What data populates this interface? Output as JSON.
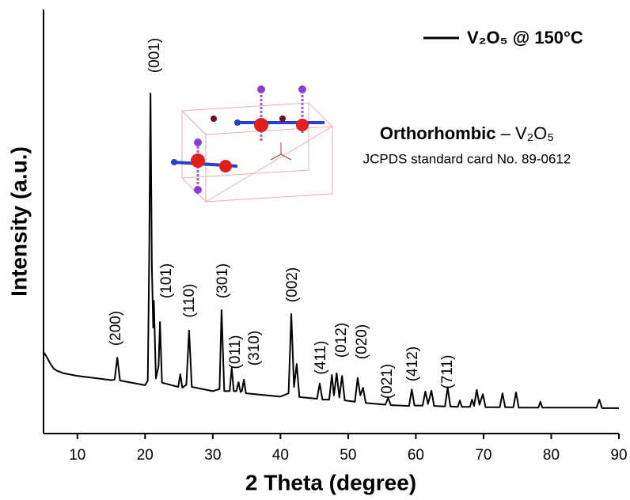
{
  "chart_data": {
    "type": "line",
    "xlabel": "2 Theta (degree)",
    "ylabel": "Intensity (a.u.)",
    "xlim": [
      5,
      90
    ],
    "xticks": [
      10,
      20,
      30,
      40,
      50,
      60,
      70,
      80,
      90
    ],
    "ylim": [
      0,
      100
    ],
    "legend": "upper right",
    "series": [
      {
        "name": "V₂O₅ @ 150°C",
        "color": "#000000",
        "x": [
          5,
          5.5,
          6,
          6.5,
          7,
          8,
          10,
          15,
          15.5,
          15.9,
          16.3,
          20,
          20.4,
          20.6,
          20.8,
          21.0,
          21.2,
          21.3,
          21.6,
          22.0,
          22.2,
          22.5,
          24.9,
          25.2,
          25.5,
          26.1,
          26.5,
          26.9,
          30,
          31.0,
          31.3,
          31.7,
          32.5,
          32.8,
          33.1,
          33.5,
          33.8,
          34.1,
          34.3,
          34.6,
          34.9,
          40,
          41.2,
          41.6,
          42.0,
          42.4,
          42.8,
          45.4,
          45.8,
          46.2,
          47.2,
          47.6,
          47.9,
          48.3,
          48.7,
          49.1,
          49.5,
          51.0,
          51.4,
          51.8,
          52.2,
          52.6,
          55.5,
          55.9,
          56.3,
          59.0,
          59.4,
          59.8,
          61.0,
          61.4,
          61.8,
          62.3,
          62.7,
          64.3,
          64.7,
          65.1,
          66.2,
          66.5,
          66.8,
          68.0,
          68.3,
          68.6,
          69.0,
          69.4,
          69.9,
          70.3,
          72.4,
          72.8,
          73.2,
          74.4,
          74.8,
          75.2,
          78.1,
          78.4,
          78.7,
          86.7,
          87.1,
          87.5,
          90
        ],
        "values": [
          19.2,
          18,
          16.5,
          15.3,
          14.8,
          14.2,
          13.6,
          12.6,
          12.7,
          17.9,
          12.5,
          11.4,
          12.5,
          40,
          80.2,
          40,
          25,
          31.3,
          13,
          16,
          26.3,
          12,
          11,
          14,
          10.8,
          11.5,
          24.3,
          11,
          10,
          10.5,
          29.1,
          10,
          10,
          15.5,
          10,
          10,
          12.1,
          9.8,
          10,
          12.7,
          9.5,
          8.7,
          9.5,
          28.2,
          11,
          16.4,
          8.6,
          8.2,
          11.8,
          8,
          8,
          13.8,
          9,
          14.2,
          8.5,
          13.6,
          7.8,
          7.5,
          13.1,
          9,
          10.8,
          7.2,
          6.8,
          8.4,
          6.7,
          6.5,
          10.4,
          6.6,
          6.6,
          9.9,
          7,
          10.1,
          6.5,
          6.4,
          10.8,
          6.4,
          6.3,
          7.8,
          6.3,
          6.3,
          8,
          6.5,
          10.3,
          6.8,
          9.3,
          6.2,
          6.2,
          9.5,
          6.2,
          6.2,
          9.7,
          6.1,
          6.1,
          7.5,
          6.1,
          6.1,
          8,
          6,
          6
        ]
      }
    ],
    "annotations": [
      "(200)",
      "(001)",
      "(101)",
      "(110)",
      "(301)",
      "(011)",
      "(310)",
      "(002)",
      "(411)",
      "(012)",
      "(020)",
      "(021)",
      "(412)",
      "(711)"
    ],
    "inset_title": {
      "bold": "Orthorhombic",
      "rest": " – V₂O₅"
    },
    "inset_subtitle": "JCPDS standard card No. 89-0612"
  }
}
